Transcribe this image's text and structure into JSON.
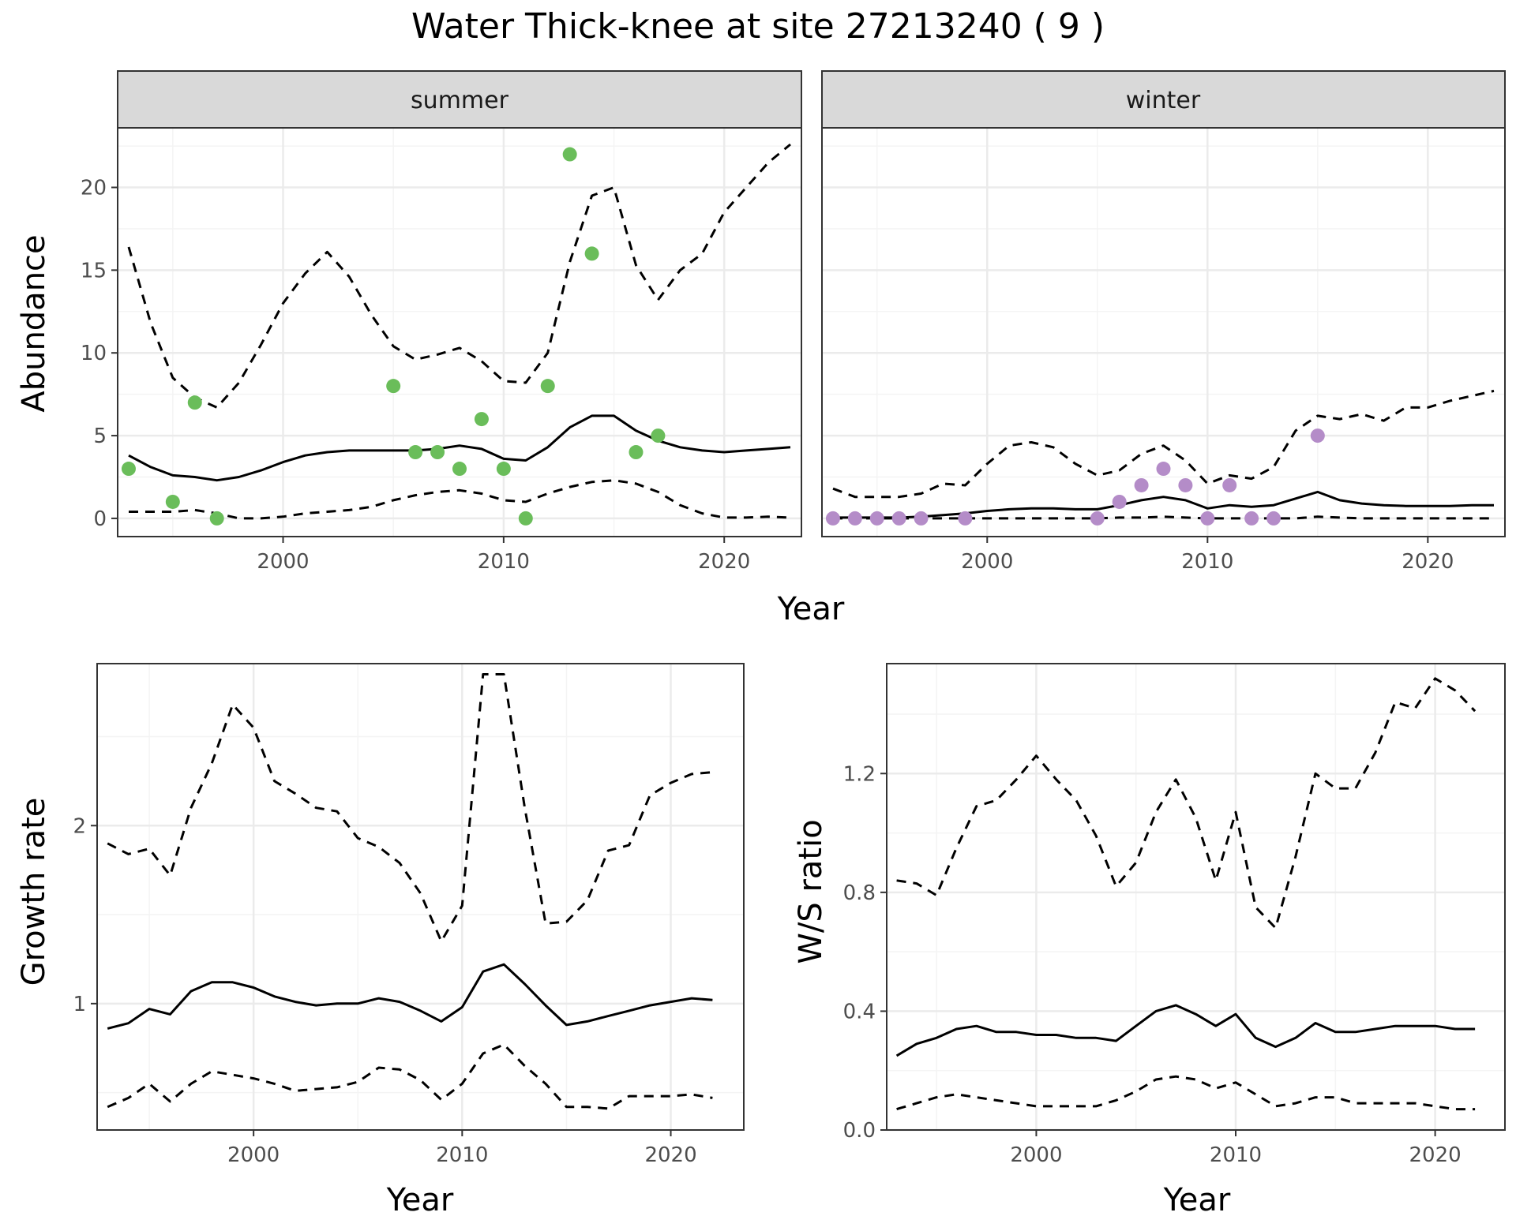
{
  "title": "Water Thick-knee at site 27213240 ( 9 )",
  "colors": {
    "summer_points": "#6abd5a",
    "winter_points": "#b48cc8",
    "line": "#000000",
    "grid_major": "#ebebeb",
    "grid_minor": "#f4f4f4",
    "strip_bg": "#d9d9d9",
    "border": "#333333"
  },
  "chart_data": [
    {
      "type": "line",
      "facet": "summer",
      "xlabel": "Year",
      "ylabel": "Abundance",
      "xlim": [
        1992.5,
        2023.5
      ],
      "ylim": [
        -1.1,
        23.6
      ],
      "x_ticks": [
        2000,
        2010,
        2020
      ],
      "y_ticks": [
        0,
        5,
        10,
        15,
        20
      ],
      "grid": true,
      "points": {
        "x": [
          1993,
          1995,
          1996,
          1997,
          2005,
          2006,
          2007,
          2008,
          2009,
          2010,
          2011,
          2012,
          2013,
          2014,
          2016,
          2017
        ],
        "y": [
          3,
          1,
          7,
          0,
          8,
          4,
          4,
          3,
          6,
          3,
          0,
          8,
          22,
          16,
          4,
          5
        ]
      },
      "x": [
        1993,
        1994,
        1995,
        1996,
        1997,
        1998,
        1999,
        2000,
        2001,
        2002,
        2003,
        2004,
        2005,
        2006,
        2007,
        2008,
        2009,
        2010,
        2011,
        2012,
        2013,
        2014,
        2015,
        2016,
        2017,
        2018,
        2019,
        2020,
        2021,
        2022,
        2023
      ],
      "series": [
        {
          "style": "solid",
          "values": [
            3.8,
            3.1,
            2.6,
            2.5,
            2.3,
            2.5,
            2.9,
            3.4,
            3.8,
            4.0,
            4.1,
            4.1,
            4.1,
            4.1,
            4.2,
            4.4,
            4.2,
            3.6,
            3.5,
            4.3,
            5.5,
            6.2,
            6.2,
            5.3,
            4.7,
            4.3,
            4.1,
            4.0,
            4.1,
            4.2,
            4.3
          ]
        },
        {
          "style": "dashed",
          "values": [
            16.4,
            11.8,
            8.5,
            7.3,
            6.7,
            8.2,
            10.5,
            13.0,
            14.8,
            16.1,
            14.6,
            12.3,
            10.4,
            9.6,
            9.9,
            10.3,
            9.5,
            8.3,
            8.2,
            10.0,
            15.5,
            19.5,
            20.0,
            15.3,
            13.2,
            15.0,
            16.0,
            18.5,
            20.0,
            21.5,
            22.6
          ]
        },
        {
          "style": "dashed",
          "values": [
            0.4,
            0.4,
            0.4,
            0.5,
            0.3,
            0.0,
            0.0,
            0.1,
            0.3,
            0.4,
            0.5,
            0.7,
            1.1,
            1.4,
            1.6,
            1.7,
            1.5,
            1.1,
            1.0,
            1.5,
            1.9,
            2.2,
            2.3,
            2.1,
            1.6,
            0.8,
            0.3,
            0.05,
            0.05,
            0.1,
            0.05
          ]
        }
      ]
    },
    {
      "type": "line",
      "facet": "winter",
      "xlabel": "Year",
      "ylabel": "Abundance",
      "xlim": [
        1992.5,
        2023.5
      ],
      "ylim": [
        -1.1,
        23.6
      ],
      "x_ticks": [
        2000,
        2010,
        2020
      ],
      "y_ticks": [
        0,
        5,
        10,
        15,
        20
      ],
      "grid": true,
      "points": {
        "x": [
          1993,
          1994,
          1995,
          1996,
          1997,
          1999,
          2005,
          2006,
          2007,
          2008,
          2009,
          2010,
          2011,
          2012,
          2013,
          2015
        ],
        "y": [
          0,
          0,
          0,
          0,
          0,
          0,
          0,
          1,
          2,
          3,
          2,
          0,
          2,
          0,
          0,
          5
        ]
      },
      "x": [
        1993,
        1994,
        1995,
        1996,
        1997,
        1998,
        1999,
        2000,
        2001,
        2002,
        2003,
        2004,
        2005,
        2006,
        2007,
        2008,
        2009,
        2010,
        2011,
        2012,
        2013,
        2014,
        2015,
        2016,
        2017,
        2018,
        2019,
        2020,
        2021,
        2022,
        2023
      ],
      "series": [
        {
          "style": "solid",
          "values": [
            0.05,
            0.05,
            0.05,
            0.05,
            0.1,
            0.2,
            0.3,
            0.45,
            0.55,
            0.6,
            0.6,
            0.55,
            0.55,
            0.8,
            1.1,
            1.3,
            1.1,
            0.6,
            0.8,
            0.7,
            0.8,
            1.2,
            1.6,
            1.1,
            0.9,
            0.8,
            0.75,
            0.75,
            0.75,
            0.8,
            0.8
          ]
        },
        {
          "style": "dashed",
          "values": [
            1.8,
            1.3,
            1.3,
            1.3,
            1.5,
            2.1,
            2.0,
            3.3,
            4.4,
            4.6,
            4.3,
            3.3,
            2.6,
            2.9,
            3.9,
            4.4,
            3.5,
            2.1,
            2.6,
            2.4,
            3.1,
            5.3,
            6.2,
            6.0,
            6.3,
            5.9,
            6.7,
            6.7,
            7.1,
            7.4,
            7.7
          ]
        },
        {
          "style": "dashed",
          "values": [
            0,
            0,
            0,
            0,
            0,
            0,
            0,
            0,
            0,
            0,
            0,
            0,
            0,
            0.05,
            0.05,
            0.1,
            0.05,
            0,
            0,
            0,
            0,
            0,
            0.1,
            0.05,
            0,
            0,
            0,
            0,
            0,
            0,
            0
          ]
        }
      ]
    },
    {
      "type": "line",
      "xlabel": "Year",
      "ylabel": "Growth rate",
      "xlim": [
        1992.5,
        2023.5
      ],
      "ylim": [
        0.29,
        2.91
      ],
      "x_ticks": [
        2000,
        2010,
        2020
      ],
      "y_ticks": [
        1,
        2
      ],
      "grid": true,
      "x": [
        1993,
        1994,
        1995,
        1996,
        1997,
        1998,
        1999,
        2000,
        2001,
        2002,
        2003,
        2004,
        2005,
        2006,
        2007,
        2008,
        2009,
        2010,
        2011,
        2012,
        2013,
        2014,
        2015,
        2016,
        2017,
        2018,
        2019,
        2020,
        2021,
        2022
      ],
      "series": [
        {
          "style": "solid",
          "values": [
            0.86,
            0.89,
            0.97,
            0.94,
            1.07,
            1.12,
            1.12,
            1.09,
            1.04,
            1.01,
            0.99,
            1.0,
            1.0,
            1.03,
            1.01,
            0.96,
            0.9,
            0.98,
            1.18,
            1.22,
            1.11,
            0.99,
            0.88,
            0.9,
            0.93,
            0.96,
            0.99,
            1.01,
            1.03,
            1.02
          ]
        },
        {
          "style": "dashed",
          "values": [
            1.9,
            1.84,
            1.87,
            1.72,
            2.1,
            2.35,
            2.68,
            2.55,
            2.25,
            2.18,
            2.1,
            2.08,
            1.93,
            1.88,
            1.79,
            1.62,
            1.35,
            1.55,
            2.85,
            2.85,
            2.1,
            1.45,
            1.46,
            1.58,
            1.86,
            1.89,
            2.17,
            2.24,
            2.29,
            2.3
          ]
        },
        {
          "style": "dashed",
          "values": [
            0.42,
            0.47,
            0.55,
            0.45,
            0.55,
            0.62,
            0.6,
            0.58,
            0.55,
            0.51,
            0.52,
            0.53,
            0.56,
            0.64,
            0.63,
            0.57,
            0.46,
            0.55,
            0.72,
            0.77,
            0.65,
            0.55,
            0.42,
            0.42,
            0.41,
            0.48,
            0.48,
            0.48,
            0.49,
            0.47
          ]
        }
      ]
    },
    {
      "type": "line",
      "xlabel": "Year",
      "ylabel": "W/S ratio",
      "xlim": [
        1992.5,
        2023.5
      ],
      "ylim": [
        0.0,
        1.57
      ],
      "x_ticks": [
        2000,
        2010,
        2020
      ],
      "y_ticks": [
        0.0,
        0.4,
        0.8,
        1.2
      ],
      "y_tick_labels": [
        "0.0",
        "0.4",
        "0.8",
        "1.2"
      ],
      "grid": true,
      "x": [
        1993,
        1994,
        1995,
        1996,
        1997,
        1998,
        1999,
        2000,
        2001,
        2002,
        2003,
        2004,
        2005,
        2006,
        2007,
        2008,
        2009,
        2010,
        2011,
        2012,
        2013,
        2014,
        2015,
        2016,
        2017,
        2018,
        2019,
        2020,
        2021,
        2022
      ],
      "series": [
        {
          "style": "solid",
          "values": [
            0.25,
            0.29,
            0.31,
            0.34,
            0.35,
            0.33,
            0.33,
            0.32,
            0.32,
            0.31,
            0.31,
            0.3,
            0.35,
            0.4,
            0.42,
            0.39,
            0.35,
            0.39,
            0.31,
            0.28,
            0.31,
            0.36,
            0.33,
            0.33,
            0.34,
            0.35,
            0.35,
            0.35,
            0.34,
            0.34
          ]
        },
        {
          "style": "dashed",
          "values": [
            0.84,
            0.83,
            0.79,
            0.95,
            1.09,
            1.11,
            1.18,
            1.26,
            1.18,
            1.11,
            0.99,
            0.82,
            0.9,
            1.07,
            1.18,
            1.05,
            0.84,
            1.07,
            0.75,
            0.68,
            0.92,
            1.2,
            1.15,
            1.15,
            1.27,
            1.44,
            1.42,
            1.52,
            1.48,
            1.41
          ]
        },
        {
          "style": "dashed",
          "values": [
            0.07,
            0.09,
            0.11,
            0.12,
            0.11,
            0.1,
            0.09,
            0.08,
            0.08,
            0.08,
            0.08,
            0.1,
            0.13,
            0.17,
            0.18,
            0.17,
            0.14,
            0.16,
            0.12,
            0.08,
            0.09,
            0.11,
            0.11,
            0.09,
            0.09,
            0.09,
            0.09,
            0.08,
            0.07,
            0.07
          ]
        }
      ]
    }
  ],
  "strips": [
    "summer",
    "winter"
  ]
}
